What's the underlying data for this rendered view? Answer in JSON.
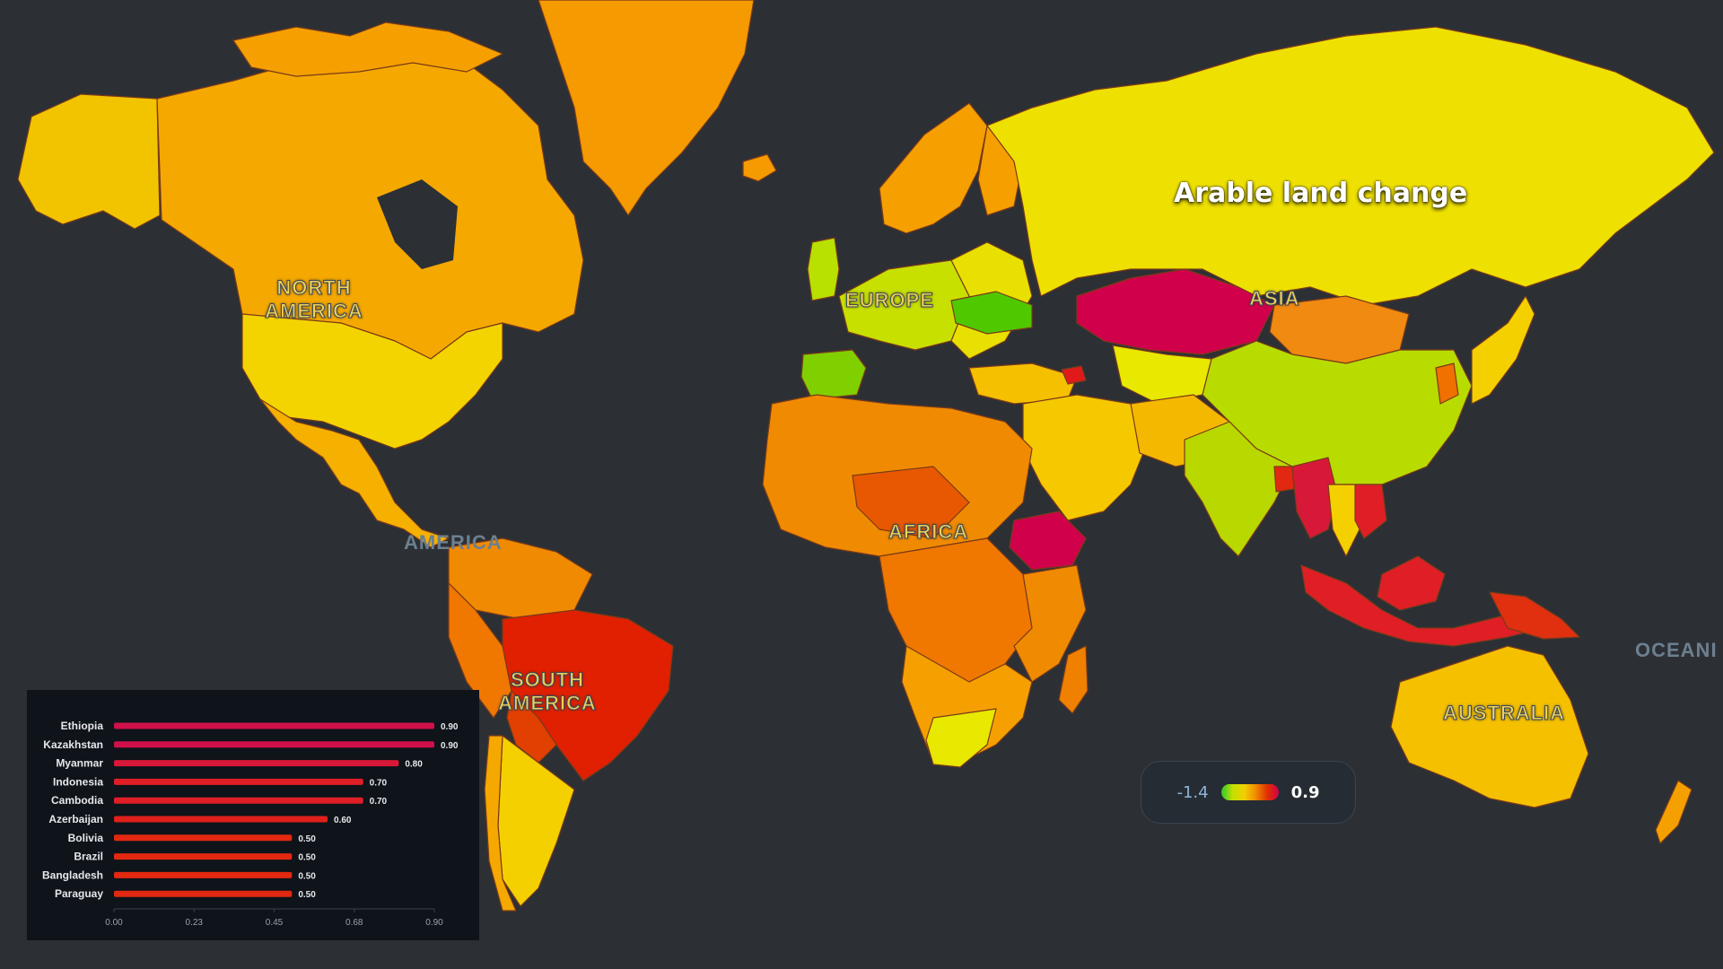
{
  "map": {
    "title": "Arable land change",
    "continents": {
      "north_america": "NORTH AMERICA",
      "europe": "EUROPE",
      "asia": "ASIA",
      "america": "AMERICA",
      "africa": "AFRICA",
      "south_america": "SOUTH AMERICA",
      "australia": "AUSTRALIA",
      "oceania": "OCEANI"
    },
    "legend": {
      "min": "-1.4",
      "max": "0.9"
    },
    "colors": {
      "background": "#2c3035",
      "low": "#2fc82f",
      "mid": "#f2d000",
      "high": "#d0004a"
    }
  },
  "chart_data": {
    "type": "bar",
    "orientation": "horizontal",
    "categories": [
      "Ethiopia",
      "Kazakhstan",
      "Myanmar",
      "Indonesia",
      "Cambodia",
      "Azerbaijan",
      "Bolivia",
      "Brazil",
      "Bangladesh",
      "Paraguay"
    ],
    "values": [
      0.9,
      0.9,
      0.8,
      0.7,
      0.7,
      0.6,
      0.5,
      0.5,
      0.5,
      0.5
    ],
    "value_labels": [
      "0.90",
      "0.90",
      "0.80",
      "0.70",
      "0.70",
      "0.60",
      "0.50",
      "0.50",
      "0.50",
      "0.50"
    ],
    "xticks": [
      "0.00",
      "0.23",
      "0.45",
      "0.68",
      "0.90"
    ],
    "xlim": [
      0,
      0.9
    ],
    "bar_colors": [
      "#d0104a",
      "#d0104a",
      "#d81838",
      "#e01e26",
      "#e01e26",
      "#e0201a",
      "#e22810",
      "#e22810",
      "#e22810",
      "#e22810"
    ]
  }
}
